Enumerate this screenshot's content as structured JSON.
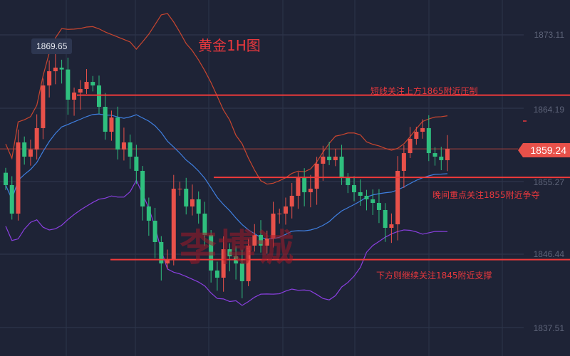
{
  "chart_data": {
    "type": "candlestick",
    "title": "黄金1H图",
    "y_ticks": [
      "1873.11",
      "1864.19",
      "1855.27",
      "1846.44",
      "1837.51"
    ],
    "ylim": [
      1835.0,
      1876.5
    ],
    "grid": true,
    "up_color": "#e8514a",
    "down_color": "#2fbf7e",
    "indicators": [
      "Bollinger upper",
      "Bollinger middle",
      "Bollinger lower"
    ],
    "indicator_colors": {
      "upper": "#c8452f",
      "middle": "#3f7fe0",
      "lower": "#8a3fe0"
    },
    "closes": [
      1854.84,
      1851.37,
      1860.03,
      1858.3,
      1859.17,
      1861.77,
      1866.96,
      1868.69,
      1869.13,
      1868.9,
      1865.23,
      1866.1,
      1866.53,
      1867.39,
      1866.96,
      1864.36,
      1861.33,
      1863.06,
      1859.17,
      1860.03,
      1858.3,
      1856.57,
      1852.24,
      1850.51,
      1847.91,
      1845.31,
      1845.8,
      1854.4,
      1854.4,
      1852.24,
      1853.11,
      1851.37,
      1848.78,
      1844.45,
      1843.58,
      1847.04,
      1846.18,
      1845.31,
      1843.15,
      1847.48,
      1848.78,
      1847.48,
      1848.34,
      1851.37,
      1851.37,
      1852.24,
      1853.54,
      1855.7,
      1853.97,
      1854.4,
      1857.44,
      1858.3,
      1857.87,
      1858.3,
      1855.7,
      1854.84,
      1853.97,
      1853.54,
      1853.11,
      1852.67,
      1851.81,
      1849.64,
      1850.07,
      1856.57,
      1858.73,
      1860.47,
      1861.33,
      1861.77,
      1858.73,
      1858.3,
      1857.87,
      1859.24
    ],
    "high_marker": "1869.65",
    "last_price": "1859.24",
    "levels": [
      {
        "price": 1865,
        "label": "短线关注上方1865附近压制"
      },
      {
        "price": 1855,
        "label": "晚间重点关注1855附近争夺"
      },
      {
        "price": 1845,
        "label": "下方则继续关注1845附近支撑"
      }
    ],
    "watermark": "李博诚"
  }
}
